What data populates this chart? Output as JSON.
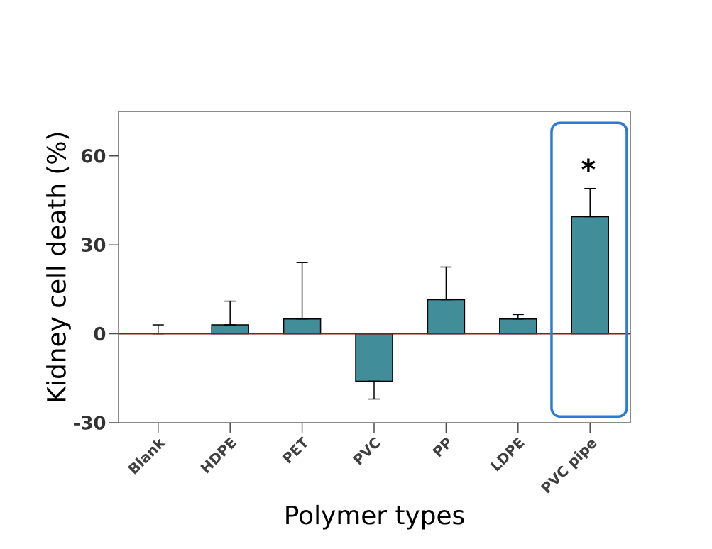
{
  "chart_data": {
    "type": "bar",
    "xlabel": "Polymer types",
    "ylabel": "Kidney cell death (%)",
    "categories": [
      "Blank",
      "HDPE",
      "PET",
      "PVC",
      "PP",
      "LDPE",
      "PVC pipe"
    ],
    "values": [
      0,
      3,
      5,
      -16,
      11.5,
      5,
      39.5
    ],
    "errors": [
      [
        0,
        3
      ],
      [
        3,
        11
      ],
      [
        5,
        24
      ],
      [
        -22,
        -16
      ],
      [
        11.5,
        22.5
      ],
      [
        5,
        6.5
      ],
      [
        39.5,
        49
      ]
    ],
    "color": "#418d99",
    "ylim": [
      -30,
      75
    ],
    "yticks": [
      -30,
      0,
      30,
      60
    ],
    "ref_lines": [
      {
        "axis": "y",
        "value": 0,
        "color": "#8b1a1a"
      }
    ],
    "annotations": [
      "*"
    ]
  }
}
